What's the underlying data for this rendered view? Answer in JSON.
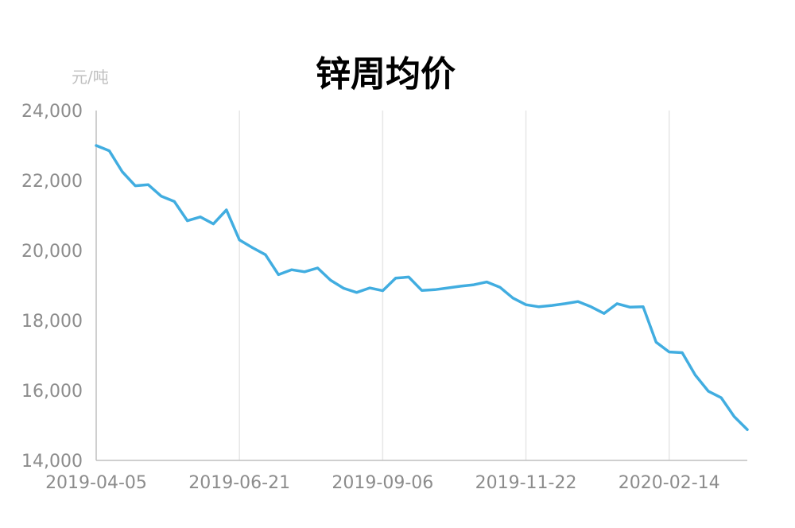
{
  "chart_data": {
    "type": "line",
    "title": "锌周均价",
    "ylabel": "元/吨",
    "xlabel": "",
    "ylim": [
      14000,
      24000
    ],
    "y_ticks": [
      "24,000",
      "22,000",
      "20,000",
      "18,000",
      "16,000",
      "14,000"
    ],
    "x_ticks": [
      "2019-04-05",
      "2019-06-21",
      "2019-09-06",
      "2019-11-22",
      "2020-02-14"
    ],
    "grid": "vertical",
    "legend": "none",
    "color": "#41ade0",
    "series": [
      {
        "values": [
          23000,
          22850,
          22250,
          21850,
          21880,
          21550,
          21400,
          20850,
          20960,
          20760,
          21160,
          20300,
          20080,
          19880,
          19310,
          19450,
          19390,
          19500,
          19150,
          18920,
          18800,
          18930,
          18850,
          19210,
          19240,
          18860,
          18880,
          18930,
          18980,
          19020,
          19100,
          18950,
          18640,
          18450,
          18390,
          18430,
          18480,
          18540,
          18390,
          18200,
          18480,
          18380,
          18390,
          17380,
          17100,
          17080,
          16440,
          15980,
          15790,
          15250,
          14880
        ]
      }
    ]
  }
}
